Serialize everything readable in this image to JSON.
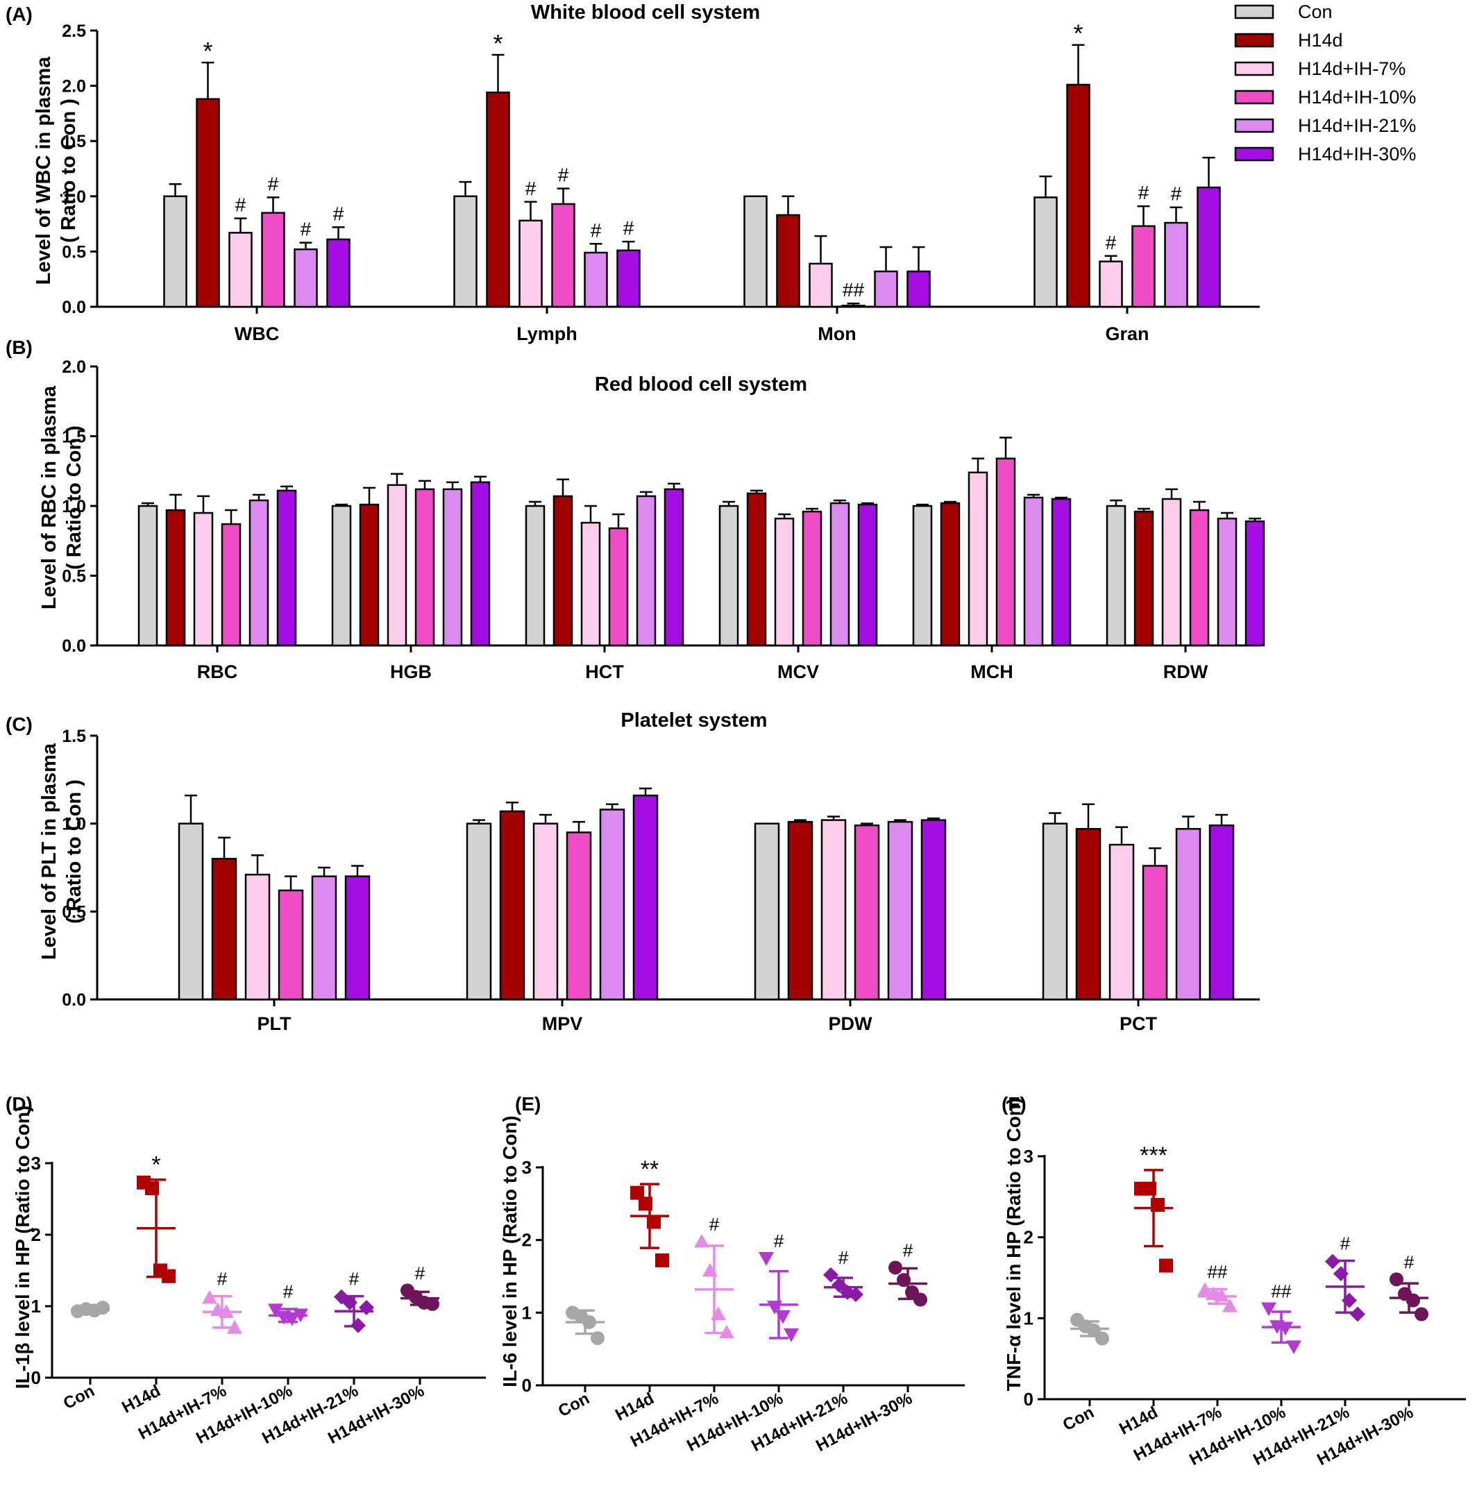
{
  "figure": {
    "groups": [
      "Con",
      "H14d",
      "H14d+IH-7%",
      "H14d+IH-10%",
      "H14d+IH-21%",
      "H14d+IH-30%"
    ],
    "colors": {
      "Con": "#d3d3d3",
      "H14d": "#a30000",
      "H14d+IH-7%": "#fbcdea",
      "H14d+IH-10%": "#f04cc8",
      "H14d+IH-21%": "#dc8af0",
      "H14d+IH-30%": "#a40ee4",
      "dot_Con": "#a6a6a6",
      "dot_H14d": "#b00000",
      "dot_H14d+IH-7%": "#e58be6",
      "dot_H14d+IH-10%": "#b23ad2",
      "dot_H14d+IH-21%": "#8a1aa6",
      "dot_H14d+IH-30%": "#6e1458"
    }
  },
  "legend": [
    "Con",
    "H14d",
    "H14d+IH-7%",
    "H14d+IH-10%",
    "H14d+IH-21%",
    "H14d+IH-30%"
  ],
  "chart_data": [
    {
      "panel": "(A)",
      "type": "bar",
      "title": "White  blood  cell  system",
      "ylabel_line1": "Level of WBC in plasma",
      "ylabel_line2": "( Ratio to Con )",
      "ylim": [
        0,
        2.5
      ],
      "yticks": [
        "0.0",
        "0.5",
        "1.0",
        "1.5",
        "2.0",
        "2.5"
      ],
      "categories": [
        "WBC",
        "Lymph",
        "Mon",
        "Gran"
      ],
      "series": [
        {
          "name": "Con",
          "values": [
            1.0,
            1.0,
            1.0,
            0.99
          ],
          "errors": [
            0.11,
            0.13,
            0.0,
            0.19
          ]
        },
        {
          "name": "H14d",
          "values": [
            1.88,
            1.94,
            0.83,
            2.01
          ],
          "errors": [
            0.33,
            0.34,
            0.17,
            0.36
          ]
        },
        {
          "name": "H14d+IH-7%",
          "values": [
            0.67,
            0.78,
            0.39,
            0.41
          ],
          "errors": [
            0.13,
            0.17,
            0.25,
            0.05
          ]
        },
        {
          "name": "H14d+IH-10%",
          "values": [
            0.85,
            0.93,
            0.01,
            0.73
          ],
          "errors": [
            0.14,
            0.14,
            0.02,
            0.18
          ]
        },
        {
          "name": "H14d+IH-21%",
          "values": [
            0.52,
            0.49,
            0.32,
            0.76
          ],
          "errors": [
            0.06,
            0.08,
            0.22,
            0.14
          ]
        },
        {
          "name": "H14d+IH-30%",
          "values": [
            0.61,
            0.51,
            0.32,
            1.08
          ],
          "errors": [
            0.11,
            0.08,
            0.22,
            0.27
          ]
        }
      ],
      "annotations": [
        [
          "",
          "*",
          "#",
          "#",
          "#",
          "#"
        ],
        [
          "",
          "*",
          "#",
          "#",
          "#",
          "#"
        ],
        [
          "",
          "",
          "",
          "##",
          "",
          ""
        ],
        [
          "",
          "*",
          "#",
          "#",
          "#",
          ""
        ]
      ]
    },
    {
      "panel": "(B)",
      "type": "bar",
      "title": "Red blood  cell system",
      "ylabel_line1": "Level of RBC in plasma",
      "ylabel_line2": "( Ratio to Con )",
      "ylim": [
        0,
        2.0
      ],
      "yticks": [
        "0.0",
        "0.5",
        "1.0",
        "1.5",
        "2.0"
      ],
      "categories": [
        "RBC",
        "HGB",
        "HCT",
        "MCV",
        "MCH",
        "RDW"
      ],
      "series": [
        {
          "name": "Con",
          "values": [
            1.0,
            1.0,
            1.0,
            1.0,
            1.0,
            1.0
          ],
          "errors": [
            0.02,
            0.01,
            0.03,
            0.03,
            0.01,
            0.04
          ]
        },
        {
          "name": "H14d",
          "values": [
            0.97,
            1.01,
            1.07,
            1.09,
            1.02,
            0.96
          ],
          "errors": [
            0.11,
            0.12,
            0.12,
            0.02,
            0.01,
            0.02
          ]
        },
        {
          "name": "H14d+IH-7%",
          "values": [
            0.95,
            1.15,
            0.88,
            0.91,
            1.24,
            1.05
          ],
          "errors": [
            0.12,
            0.08,
            0.12,
            0.03,
            0.1,
            0.07
          ]
        },
        {
          "name": "H14d+IH-10%",
          "values": [
            0.87,
            1.12,
            0.84,
            0.96,
            1.34,
            0.97
          ],
          "errors": [
            0.1,
            0.06,
            0.1,
            0.02,
            0.15,
            0.06
          ]
        },
        {
          "name": "H14d+IH-21%",
          "values": [
            1.04,
            1.12,
            1.07,
            1.02,
            1.06,
            0.91
          ],
          "errors": [
            0.04,
            0.05,
            0.03,
            0.02,
            0.02,
            0.04
          ]
        },
        {
          "name": "H14d+IH-30%",
          "values": [
            1.11,
            1.17,
            1.12,
            1.01,
            1.05,
            0.89
          ],
          "errors": [
            0.03,
            0.04,
            0.04,
            0.01,
            0.01,
            0.02
          ]
        }
      ]
    },
    {
      "panel": "(C)",
      "type": "bar",
      "title": "Platelet system",
      "ylabel_line1": "Level of PLT in plasma",
      "ylabel_line2": "( Ratio to Con )",
      "ylim": [
        0,
        1.5
      ],
      "yticks": [
        "0.0",
        "0.5",
        "1.0",
        "1.5"
      ],
      "categories": [
        "PLT",
        "MPV",
        "PDW",
        "PCT"
      ],
      "series": [
        {
          "name": "Con",
          "values": [
            1.0,
            1.0,
            1.0,
            1.0
          ],
          "errors": [
            0.16,
            0.02,
            0.0,
            0.06
          ]
        },
        {
          "name": "H14d",
          "values": [
            0.8,
            1.07,
            1.01,
            0.97
          ],
          "errors": [
            0.12,
            0.05,
            0.01,
            0.14
          ]
        },
        {
          "name": "H14d+IH-7%",
          "values": [
            0.71,
            1.0,
            1.02,
            0.88
          ],
          "errors": [
            0.11,
            0.05,
            0.02,
            0.1
          ]
        },
        {
          "name": "H14d+IH-10%",
          "values": [
            0.62,
            0.95,
            0.99,
            0.76
          ],
          "errors": [
            0.08,
            0.06,
            0.01,
            0.1
          ]
        },
        {
          "name": "H14d+IH-21%",
          "values": [
            0.7,
            1.08,
            1.01,
            0.97
          ],
          "errors": [
            0.05,
            0.03,
            0.01,
            0.07
          ]
        },
        {
          "name": "H14d+IH-30%",
          "values": [
            0.7,
            1.16,
            1.02,
            0.99
          ],
          "errors": [
            0.06,
            0.04,
            0.01,
            0.06
          ]
        }
      ]
    },
    {
      "panel": "(D)",
      "type": "scatter",
      "ylabel": "IL-1β level in HP (Ratio to Con)",
      "ylim": [
        0,
        3
      ],
      "yticks": [
        "0",
        "1",
        "2",
        "3"
      ],
      "categories": [
        "Con",
        "H14d",
        "H14d+IH-7%",
        "H14d+IH-10%",
        "H14d+IH-21%",
        "H14d+IH-30%"
      ],
      "markers": [
        "circle",
        "square",
        "triangle-up",
        "triangle-down",
        "diamond",
        "circle"
      ],
      "points": [
        [
          0.93,
          0.96,
          0.94,
          0.98
        ],
        [
          2.73,
          2.65,
          1.5,
          1.42
        ],
        [
          1.12,
          0.95,
          0.92,
          0.7
        ],
        [
          0.95,
          0.85,
          0.83,
          0.88
        ],
        [
          1.13,
          1.05,
          0.73,
          0.98
        ],
        [
          1.22,
          1.13,
          1.05,
          1.03
        ]
      ],
      "mean": [
        0.95,
        2.09,
        0.92,
        0.87,
        0.93,
        1.11
      ],
      "sd": [
        0.03,
        0.68,
        0.22,
        0.09,
        0.21,
        0.09
      ],
      "annotations": [
        "",
        "*",
        "#",
        "#",
        "#",
        "#"
      ]
    },
    {
      "panel": "(E)",
      "type": "scatter",
      "ylabel": "IL-6 level in HP (Ratio to Con)",
      "ylim": [
        0,
        3
      ],
      "yticks": [
        "0",
        "1",
        "2",
        "3"
      ],
      "categories": [
        "Con",
        "H14d",
        "H14d+IH-7%",
        "H14d+IH-10%",
        "H14d+IH-21%",
        "H14d+IH-30%"
      ],
      "markers": [
        "circle",
        "square",
        "triangle-up",
        "triangle-down",
        "diamond",
        "circle"
      ],
      "points": [
        [
          1.0,
          0.95,
          0.87,
          0.65
        ],
        [
          2.65,
          2.5,
          2.25,
          1.72
        ],
        [
          1.98,
          1.58,
          0.98,
          0.73
        ],
        [
          1.75,
          1.08,
          0.95,
          0.7
        ],
        [
          1.52,
          1.38,
          1.28,
          1.25
        ],
        [
          1.62,
          1.45,
          1.28,
          1.18
        ]
      ],
      "mean": [
        0.87,
        2.33,
        1.32,
        1.11,
        1.35,
        1.4
      ],
      "sd": [
        0.16,
        0.44,
        0.6,
        0.46,
        0.13,
        0.21
      ],
      "annotations": [
        "",
        "**",
        "#",
        "#",
        "#",
        "#"
      ]
    },
    {
      "panel": "(F)",
      "type": "scatter",
      "ylabel": "TNF-α level in HP (Ratio to Con)",
      "ylim": [
        0,
        3
      ],
      "yticks": [
        "0",
        "1",
        "2",
        "3"
      ],
      "categories": [
        "Con",
        "H14d",
        "H14d+IH-7%",
        "H14d+IH-10%",
        "H14d+IH-21%",
        "H14d+IH-30%"
      ],
      "markers": [
        "circle",
        "square",
        "triangle-up",
        "triangle-down",
        "diamond",
        "circle"
      ],
      "points": [
        [
          0.98,
          0.9,
          0.85,
          0.75
        ],
        [
          2.6,
          2.6,
          2.4,
          1.65
        ],
        [
          1.35,
          1.3,
          1.28,
          1.15
        ],
        [
          1.12,
          0.9,
          0.88,
          0.65
        ],
        [
          1.7,
          1.55,
          1.22,
          1.05
        ],
        [
          1.48,
          1.3,
          1.22,
          1.05
        ]
      ],
      "mean": [
        0.87,
        2.36,
        1.27,
        0.89,
        1.39,
        1.25
      ],
      "sd": [
        0.09,
        0.47,
        0.09,
        0.19,
        0.32,
        0.18
      ],
      "annotations": [
        "",
        "***",
        "##",
        "##",
        "#",
        "#"
      ]
    }
  ]
}
